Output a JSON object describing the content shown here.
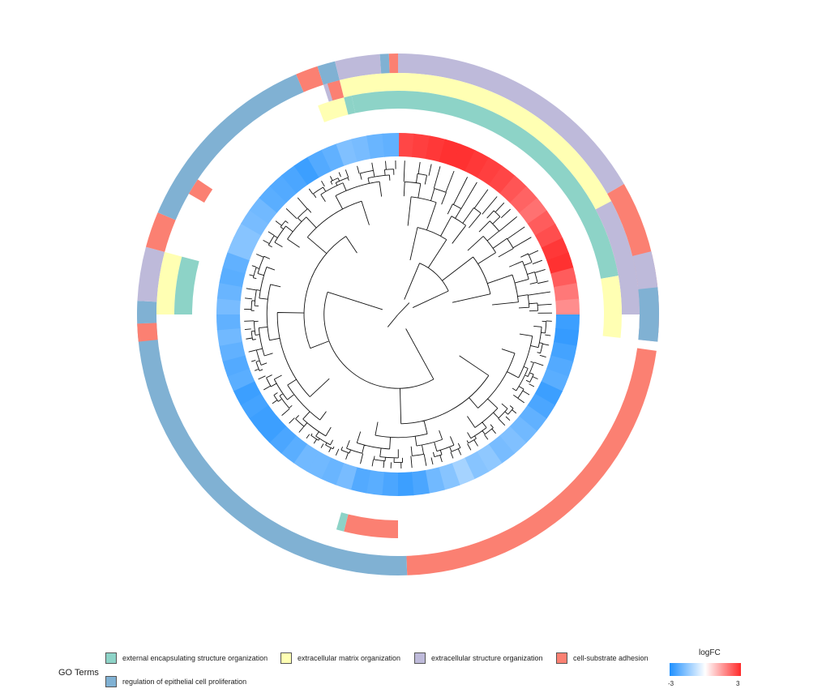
{
  "chart_data": {
    "type": "circular-heatmap-dendrogram",
    "color_scale": {
      "title": "logFC",
      "min_label": "-3",
      "max_label": "3",
      "low_color": "#1e90ff",
      "mid_color": "#ffffff",
      "high_color": "#ff2a2a"
    },
    "logfc": [
      2.6,
      2.7,
      2.8,
      2.9,
      2.9,
      2.8,
      2.7,
      2.6,
      2.4,
      2.2,
      2.0,
      2.3,
      2.5,
      2.8,
      2.9,
      2.3,
      1.9,
      1.6,
      -2.6,
      -2.7,
      -2.5,
      -2.3,
      -2.2,
      -2.6,
      -2.4,
      -2.1,
      -1.9,
      -1.7,
      -1.8,
      -1.5,
      -1.6,
      -1.2,
      -1.6,
      -1.9,
      -2.4,
      -2.6,
      -2.4,
      -2.2,
      -2.3,
      -1.8,
      -2.0,
      -1.9,
      -1.9,
      -2.2,
      -2.4,
      -2.6,
      -2.6,
      -2.5,
      -2.6,
      -2.2,
      -2.3,
      -2.1,
      -1.9,
      -2.1,
      -1.8,
      -2.0,
      -2.2,
      -2.1,
      -1.6,
      -1.6,
      -1.8,
      -1.9,
      -2.2,
      -2.3,
      -2.4,
      -2.6,
      -2.3,
      -2.1,
      -1.7,
      -1.8,
      -2.0,
      -2.1
    ],
    "go_terms": {
      "title": "GO Terms",
      "items": [
        {
          "label": "external encapsulating structure organization",
          "color": "#8dd3c7"
        },
        {
          "label": "extracellular matrix organization",
          "color": "#ffffb3"
        },
        {
          "label": "extracellular structure organization",
          "color": "#bebada"
        },
        {
          "label": "cell-substrate adhesion",
          "color": "#fb8072"
        },
        {
          "label": "regulation of epithelial cell proliferation",
          "color": "#80b1d3"
        }
      ]
    },
    "go_segments": [
      {
        "term": "extracellular structure organization",
        "layer": 0,
        "start_deg": 0,
        "end_deg": 60
      },
      {
        "term": "extracellular matrix organization",
        "layer": 1,
        "start_deg": 0,
        "end_deg": 80
      },
      {
        "term": "external encapsulating structure organization",
        "layer": 2,
        "start_deg": 0,
        "end_deg": 80
      },
      {
        "term": "cell-substrate adhesion",
        "layer": 0,
        "start_deg": 60,
        "end_deg": 94
      },
      {
        "term": "extracellular structure organization",
        "layer": 1,
        "start_deg": 62,
        "end_deg": 90
      },
      {
        "term": "extracellular matrix organization",
        "layer": 2,
        "start_deg": 80,
        "end_deg": 96
      },
      {
        "term": "extracellular structure organization",
        "layer": 0,
        "start_deg": 76,
        "end_deg": 96
      },
      {
        "term": "regulation of epithelial cell proliferation",
        "layer": 0,
        "start_deg": 84,
        "end_deg": 96
      },
      {
        "term": "cell-substrate adhesion",
        "layer": 0,
        "start_deg": 98,
        "end_deg": 178
      },
      {
        "term": "regulation of epithelial cell proliferation",
        "layer": 0,
        "start_deg": 178,
        "end_deg": 268
      },
      {
        "term": "cell-substrate adhesion",
        "layer": 2,
        "start_deg": 180,
        "end_deg": 194
      },
      {
        "term": "external encapsulating structure organization",
        "layer": 2,
        "start_deg": 194,
        "end_deg": 196
      },
      {
        "term": "cell-substrate adhesion",
        "layer": 0,
        "start_deg": 264,
        "end_deg": 268
      },
      {
        "term": "regulation of epithelial cell proliferation",
        "layer": 0,
        "start_deg": 268,
        "end_deg": 273
      },
      {
        "term": "extracellular structure organization",
        "layer": 0,
        "start_deg": 273,
        "end_deg": 285
      },
      {
        "term": "extracellular matrix organization",
        "layer": 1,
        "start_deg": 270,
        "end_deg": 285
      },
      {
        "term": "external encapsulating structure organization",
        "layer": 2,
        "start_deg": 270,
        "end_deg": 285
      },
      {
        "term": "cell-substrate adhesion",
        "layer": 0,
        "start_deg": 285,
        "end_deg": 293
      },
      {
        "term": "regulation of epithelial cell proliferation",
        "layer": 0,
        "start_deg": 293,
        "end_deg": 337
      },
      {
        "term": "cell-substrate adhesion",
        "layer": 1,
        "start_deg": 300,
        "end_deg": 304
      },
      {
        "term": "cell-substrate adhesion",
        "layer": 0,
        "start_deg": 337,
        "end_deg": 342
      },
      {
        "term": "extracellular structure organization",
        "layer": 1,
        "start_deg": 342,
        "end_deg": 346
      },
      {
        "term": "cell-substrate adhesion",
        "layer": 1,
        "start_deg": 343,
        "end_deg": 346
      },
      {
        "term": "extracellular matrix organization",
        "layer": 2,
        "start_deg": 339,
        "end_deg": 346
      },
      {
        "term": "external encapsulating structure organization",
        "layer": 2,
        "start_deg": 346,
        "end_deg": 348
      },
      {
        "term": "regulation of epithelial cell proliferation",
        "layer": 0,
        "start_deg": 342,
        "end_deg": 346
      },
      {
        "term": "extracellular structure organization",
        "layer": 0,
        "start_deg": 346,
        "end_deg": 356
      },
      {
        "term": "extracellular matrix organization",
        "layer": 1,
        "start_deg": 346,
        "end_deg": 360
      },
      {
        "term": "external encapsulating structure organization",
        "layer": 2,
        "start_deg": 348,
        "end_deg": 360
      },
      {
        "term": "regulation of epithelial cell proliferation",
        "layer": 0,
        "start_deg": 356,
        "end_deg": 358
      },
      {
        "term": "cell-substrate adhesion",
        "layer": 0,
        "start_deg": 358,
        "end_deg": 360
      }
    ]
  }
}
